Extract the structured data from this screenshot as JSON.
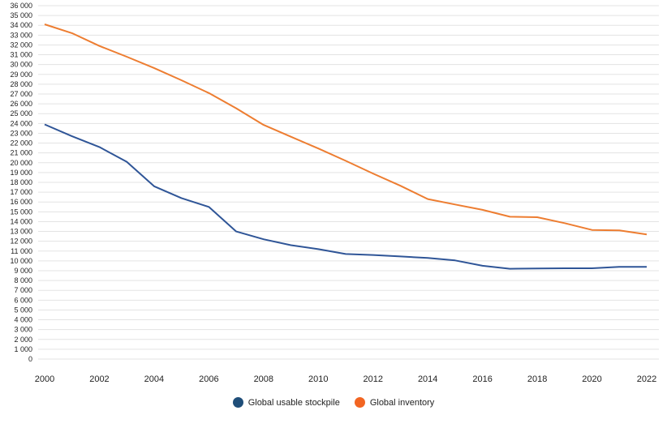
{
  "chart_data": {
    "type": "line",
    "title": "",
    "xlabel": "",
    "ylabel": "",
    "x": [
      2000,
      2001,
      2002,
      2003,
      2004,
      2005,
      2006,
      2007,
      2008,
      2009,
      2010,
      2011,
      2012,
      2013,
      2014,
      2015,
      2016,
      2017,
      2018,
      2019,
      2020,
      2021,
      2022
    ],
    "xticks": [
      "2000",
      "2002",
      "2004",
      "2006",
      "2008",
      "2010",
      "2012",
      "2014",
      "2016",
      "2018",
      "2020",
      "2022"
    ],
    "xlim": [
      2000,
      2022
    ],
    "ylim": [
      0,
      36000
    ],
    "yticks": [
      "0",
      "1 000",
      "2 000",
      "3 000",
      "4 000",
      "5 000",
      "6 000",
      "7 000",
      "8 000",
      "9 000",
      "10 000",
      "11 000",
      "12 000",
      "13 000",
      "14 000",
      "15 000",
      "16 000",
      "17 000",
      "18 000",
      "19 000",
      "20 000",
      "21 000",
      "22 000",
      "23 000",
      "24 000",
      "25 000",
      "26 000",
      "27 000",
      "28 000",
      "29 000",
      "30 000",
      "31 000",
      "32 000",
      "33 000",
      "34 000",
      "35 000",
      "36 000"
    ],
    "grid": true,
    "legend_position": "bottom-center",
    "series": [
      {
        "name": "Global usable stockpile",
        "color": "#2f5597",
        "legend_color": "#1f4e79",
        "values": [
          23900,
          22700,
          21600,
          20100,
          17600,
          16400,
          15500,
          13000,
          12200,
          11600,
          11200,
          10700,
          10600,
          10450,
          10300,
          10050,
          9500,
          9200,
          9230,
          9250,
          9250,
          9400,
          9400
        ]
      },
      {
        "name": "Global inventory",
        "color": "#ed7d31",
        "legend_color": "#f26522",
        "values": [
          34100,
          33200,
          31900,
          30800,
          29650,
          28400,
          27100,
          25550,
          23850,
          22650,
          21450,
          20200,
          18900,
          17650,
          16300,
          15750,
          15200,
          14500,
          14450,
          13850,
          13150,
          13100,
          12700
        ]
      }
    ]
  }
}
